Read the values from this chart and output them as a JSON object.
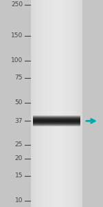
{
  "bg_color": "#c8c8c8",
  "marker_labels": [
    "250",
    "150",
    "100",
    "75",
    "50",
    "37",
    "25",
    "20",
    "15",
    "10"
  ],
  "marker_positions": [
    250,
    150,
    100,
    75,
    50,
    37,
    25,
    20,
    15,
    10
  ],
  "band_kda": 37,
  "band_color": "#1a1a1a",
  "arrow_color": "#00aaaa",
  "label_color": "#444444",
  "label_fontsize": 6.5,
  "tick_color": "#444444",
  "ymin": 9,
  "ymax": 270,
  "fig_width": 1.5,
  "fig_height": 3.0,
  "dpi": 100
}
